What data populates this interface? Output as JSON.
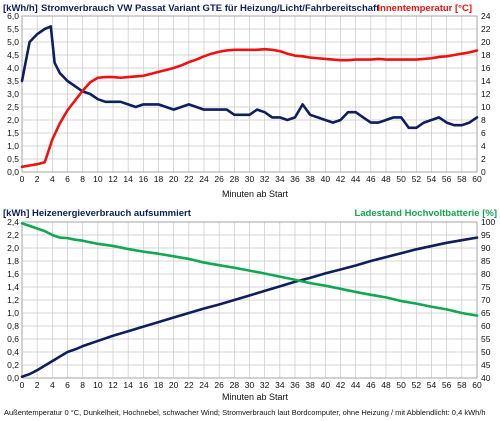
{
  "colors": {
    "navy": "#0d1f5c",
    "red": "#ee1111",
    "green": "#10a850",
    "grid": "#c8c8c8",
    "text": "#111111"
  },
  "footnote": "Außentemperatur 0 °C, Dunkelheit, Hochnebel, schwacher Wind; Stromverbrauch laut Bordcomputer, ohne Heizung / mit Abblendlicht: 0,4 kWh/h",
  "chart_data": [
    {
      "type": "line",
      "unit_left": "[kWh/h]",
      "title": "Stromverbrauch  VW Passat Variant GTE  für Heizung/Licht/Fahrbereitschaft",
      "right_title": "Innentemperatur [°C]",
      "xlabel": "Minuten ab Start",
      "xlim": [
        0,
        60
      ],
      "ylim_left": [
        0,
        6
      ],
      "ylim_right": [
        0,
        24
      ],
      "xticks": [
        "0",
        "2",
        "4",
        "6",
        "8",
        "10",
        "12",
        "14",
        "16",
        "18",
        "20",
        "22",
        "24",
        "26",
        "28",
        "30",
        "32",
        "34",
        "36",
        "38",
        "40",
        "42",
        "44",
        "46",
        "48",
        "50",
        "52",
        "54",
        "56",
        "58",
        "60"
      ],
      "yticks_left": [
        "0,0",
        "0,5",
        "1,0",
        "1,5",
        "2,0",
        "2,5",
        "3,0",
        "3,5",
        "4,0",
        "4,5",
        "5,0",
        "5,5",
        "6,0"
      ],
      "yticks_right": [
        "0",
        "2",
        "4",
        "6",
        "8",
        "10",
        "12",
        "14",
        "16",
        "18",
        "20",
        "22",
        "24"
      ],
      "grid": true,
      "series": [
        {
          "axis": "left",
          "color": "#0d1f5c",
          "x": [
            0,
            1,
            2,
            3,
            3.8,
            4.3,
            5,
            6,
            7,
            8,
            9,
            10,
            11,
            12,
            13,
            14,
            15,
            16,
            17,
            18,
            19,
            20,
            21,
            22,
            23,
            24,
            25,
            26,
            27,
            28,
            29,
            30,
            31,
            32,
            33,
            34,
            35,
            36,
            37,
            38,
            39,
            40,
            41,
            42,
            43,
            44,
            45,
            46,
            47,
            48,
            49,
            50,
            51,
            52,
            53,
            54,
            55,
            56,
            57,
            58,
            59,
            60
          ],
          "y": [
            3.5,
            5.0,
            5.3,
            5.5,
            5.6,
            4.2,
            3.8,
            3.5,
            3.3,
            3.1,
            3.0,
            2.8,
            2.7,
            2.7,
            2.7,
            2.6,
            2.5,
            2.6,
            2.6,
            2.6,
            2.5,
            2.4,
            2.5,
            2.6,
            2.5,
            2.4,
            2.4,
            2.4,
            2.4,
            2.2,
            2.2,
            2.2,
            2.4,
            2.3,
            2.1,
            2.1,
            2.0,
            2.1,
            2.6,
            2.2,
            2.1,
            2.0,
            1.9,
            2.0,
            2.3,
            2.3,
            2.1,
            1.9,
            1.9,
            2.0,
            2.1,
            2.1,
            1.7,
            1.7,
            1.9,
            2.0,
            2.1,
            1.9,
            1.8,
            1.8,
            1.9,
            2.1
          ]
        },
        {
          "axis": "right",
          "color": "#ee1111",
          "x": [
            0,
            1,
            2,
            3,
            4,
            5,
            6,
            7,
            8,
            9,
            10,
            11,
            12,
            13,
            14,
            15,
            16,
            17,
            18,
            19,
            20,
            21,
            22,
            23,
            24,
            25,
            26,
            27,
            28,
            29,
            30,
            31,
            32,
            33,
            34,
            35,
            36,
            37,
            38,
            39,
            40,
            41,
            42,
            43,
            44,
            45,
            46,
            47,
            48,
            49,
            50,
            51,
            52,
            53,
            54,
            55,
            56,
            57,
            58,
            59,
            60
          ],
          "y": [
            0.8,
            1.0,
            1.2,
            1.5,
            5.0,
            7.5,
            9.5,
            11,
            12.5,
            13.8,
            14.5,
            14.6,
            14.6,
            14.5,
            14.6,
            14.7,
            14.8,
            15.1,
            15.4,
            15.7,
            16.0,
            16.4,
            16.9,
            17.3,
            17.8,
            18.2,
            18.5,
            18.7,
            18.8,
            18.8,
            18.8,
            18.8,
            18.9,
            18.8,
            18.6,
            18.2,
            17.9,
            17.8,
            17.6,
            17.5,
            17.4,
            17.3,
            17.2,
            17.2,
            17.3,
            17.3,
            17.3,
            17.4,
            17.3,
            17.3,
            17.3,
            17.3,
            17.3,
            17.4,
            17.5,
            17.7,
            17.8,
            18.0,
            18.2,
            18.4,
            18.7
          ]
        }
      ]
    },
    {
      "type": "line",
      "unit_left": "[kWh]",
      "title": "Heizenergieverbrauch aufsummiert",
      "right_title": "Ladestand Hochvoltbatterie [%]",
      "xlabel": "Minuten ab Start",
      "xlim": [
        0,
        60
      ],
      "ylim_left": [
        0,
        2.4
      ],
      "ylim_right": [
        40,
        100
      ],
      "xticks": [
        "0",
        "2",
        "4",
        "6",
        "8",
        "10",
        "12",
        "14",
        "16",
        "18",
        "20",
        "22",
        "24",
        "26",
        "28",
        "30",
        "32",
        "34",
        "36",
        "38",
        "40",
        "42",
        "44",
        "46",
        "48",
        "50",
        "52",
        "54",
        "56",
        "58",
        "60"
      ],
      "yticks_left": [
        "0,0",
        "0,2",
        "0,4",
        "0,6",
        "0,8",
        "1,0",
        "1,2",
        "1,4",
        "1,6",
        "1,8",
        "2,0",
        "2,2",
        "2,4"
      ],
      "yticks_right": [
        "40",
        "45",
        "50",
        "55",
        "60",
        "65",
        "70",
        "75",
        "80",
        "85",
        "90",
        "95",
        "100"
      ],
      "grid": true,
      "series": [
        {
          "axis": "left",
          "color": "#0d1f5c",
          "x": [
            0,
            1,
            2,
            3,
            4,
            5,
            6,
            7,
            8,
            10,
            12,
            14,
            16,
            18,
            20,
            22,
            24,
            26,
            28,
            30,
            32,
            34,
            36,
            38,
            40,
            42,
            44,
            46,
            48,
            50,
            52,
            54,
            56,
            58,
            60
          ],
          "y": [
            0.02,
            0.06,
            0.12,
            0.19,
            0.26,
            0.33,
            0.4,
            0.44,
            0.49,
            0.57,
            0.65,
            0.72,
            0.79,
            0.86,
            0.93,
            1.0,
            1.07,
            1.13,
            1.2,
            1.27,
            1.34,
            1.41,
            1.48,
            1.54,
            1.61,
            1.67,
            1.73,
            1.8,
            1.86,
            1.92,
            1.98,
            2.03,
            2.08,
            2.12,
            2.16
          ]
        },
        {
          "axis": "right",
          "color": "#10a850",
          "x": [
            0,
            1,
            2,
            3,
            4,
            5,
            6,
            7,
            8,
            10,
            12,
            14,
            16,
            18,
            20,
            22,
            24,
            26,
            28,
            30,
            32,
            34,
            36,
            38,
            40,
            42,
            44,
            46,
            48,
            50,
            52,
            54,
            56,
            58,
            60
          ],
          "y": [
            99.5,
            98.5,
            97.5,
            96.5,
            95.0,
            94.0,
            93.8,
            93.2,
            92.8,
            91.6,
            90.8,
            89.6,
            88.6,
            87.8,
            86.8,
            85.8,
            84.4,
            83.4,
            82.4,
            81.3,
            80.2,
            79.0,
            77.8,
            76.5,
            75.5,
            74.3,
            73.1,
            72.0,
            71.0,
            69.6,
            68.6,
            67.4,
            66.4,
            65.0,
            64.0
          ]
        }
      ]
    }
  ]
}
